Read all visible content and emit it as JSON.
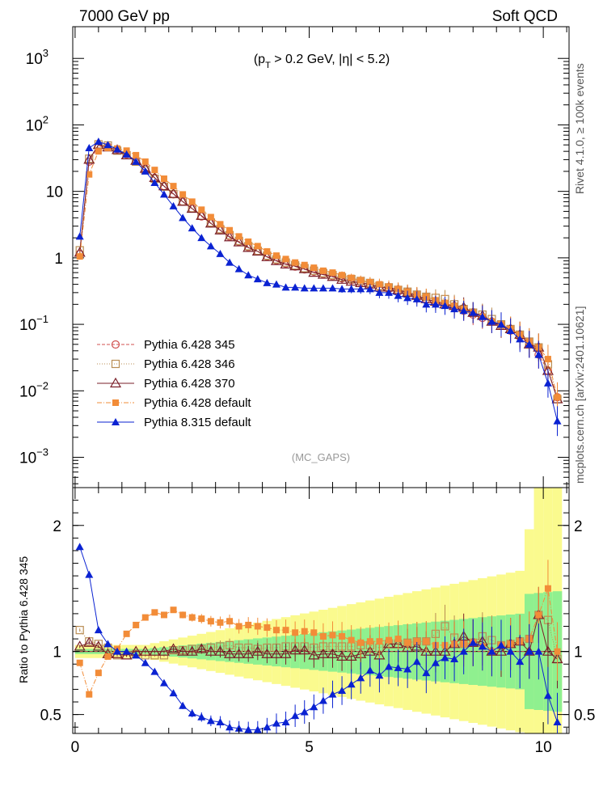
{
  "header": {
    "left_title": "7000 GeV pp",
    "right_title": "Soft QCD",
    "cut_label_prefix": "(p",
    "cut_label_sub": "T",
    "cut_label_suffix": " > 0.2 GeV, |η| < 5.2)",
    "analysis_tag": "(MC_GAPS)",
    "side_label_top": "Rivet 4.1.0, ≥ 100k events",
    "side_label_bottom": "mcplots.cern.ch [arXiv:2401.10621]",
    "ratio_ylabel": "Ratio to Pythia 6.428 345"
  },
  "chart_data": {
    "type": "line",
    "x_range": [
      -0.05,
      10.55
    ],
    "y_range_main": [
      0.00035,
      3000
    ],
    "y_scale_main": "log",
    "y_range_ratio": [
      0.35,
      2.3
    ],
    "x_ticks": [
      "0",
      "5",
      "10"
    ],
    "x_tick_values": [
      0,
      5,
      10
    ],
    "y_ticks_main": [
      {
        "v": 0.001,
        "base": "10",
        "exp": "−3"
      },
      {
        "v": 0.01,
        "base": "10",
        "exp": "−2"
      },
      {
        "v": 0.1,
        "base": "10",
        "exp": "−1"
      },
      {
        "v": 1,
        "base": "1",
        "exp": ""
      },
      {
        "v": 10,
        "base": "10",
        "exp": ""
      },
      {
        "v": 100,
        "base": "10",
        "exp": "2"
      },
      {
        "v": 1000,
        "base": "10",
        "exp": "3"
      }
    ],
    "y_ticks_ratio": [
      {
        "v": 0.5,
        "label": "0.5"
      },
      {
        "v": 1,
        "label": "1"
      },
      {
        "v": 2,
        "label": "2"
      }
    ],
    "x": [
      0.1,
      0.3,
      0.5,
      0.7,
      0.9,
      1.1,
      1.3,
      1.5,
      1.7,
      1.9,
      2.1,
      2.3,
      2.5,
      2.7,
      2.9,
      3.1,
      3.3,
      3.5,
      3.7,
      3.9,
      4.1,
      4.3,
      4.5,
      4.7,
      4.9,
      5.1,
      5.3,
      5.5,
      5.7,
      5.9,
      6.1,
      6.3,
      6.5,
      6.7,
      6.9,
      7.1,
      7.3,
      7.5,
      7.7,
      7.9,
      8.1,
      8.3,
      8.5,
      8.7,
      8.9,
      9.1,
      9.3,
      9.5,
      9.7,
      9.9,
      10.1,
      10.3
    ],
    "series": [
      {
        "name": "Pythia 6.428 345",
        "color": "#d0504f",
        "marker": "open-circle",
        "dash": "4,2",
        "values": [
          1.15,
          28,
          48,
          47,
          43,
          36,
          29,
          22,
          16,
          12,
          9,
          7,
          5.5,
          4.2,
          3.3,
          2.6,
          2.1,
          1.75,
          1.45,
          1.25,
          1.05,
          0.92,
          0.82,
          0.74,
          0.67,
          0.62,
          0.57,
          0.53,
          0.49,
          0.46,
          0.43,
          0.4,
          0.37,
          0.34,
          0.31,
          0.29,
          0.26,
          0.24,
          0.22,
          0.2,
          0.18,
          0.16,
          0.14,
          0.125,
          0.11,
          0.095,
          0.08,
          0.065,
          0.05,
          0.035,
          0.02,
          0.008
        ]
      },
      {
        "name": "Pythia 6.428 346",
        "color": "#b98d53",
        "marker": "open-square",
        "dash": "1,2",
        "values": [
          1.3,
          31,
          51,
          49,
          41,
          35,
          28,
          21,
          15.5,
          11.8,
          9.1,
          7.1,
          5.6,
          4.3,
          3.4,
          2.7,
          2.2,
          1.8,
          1.5,
          1.28,
          1.08,
          0.95,
          0.85,
          0.77,
          0.7,
          0.64,
          0.59,
          0.55,
          0.51,
          0.48,
          0.45,
          0.42,
          0.38,
          0.36,
          0.33,
          0.31,
          0.28,
          0.26,
          0.25,
          0.24,
          0.2,
          0.17,
          0.15,
          0.14,
          0.12,
          0.1,
          0.085,
          0.07,
          0.055,
          0.045,
          0.025,
          0.0075
        ]
      },
      {
        "name": "Pythia 6.428 370",
        "color": "#7a1f29",
        "marker": "open-triangle",
        "dash": "",
        "values": [
          1.2,
          30,
          50,
          46,
          42,
          35,
          29,
          22,
          16,
          12,
          9.2,
          7,
          5.5,
          4.3,
          3.3,
          2.6,
          2.05,
          1.72,
          1.42,
          1.25,
          1.03,
          0.9,
          0.8,
          0.75,
          0.68,
          0.6,
          0.56,
          0.52,
          0.47,
          0.44,
          0.42,
          0.4,
          0.36,
          0.36,
          0.33,
          0.3,
          0.27,
          0.24,
          0.22,
          0.2,
          0.19,
          0.18,
          0.15,
          0.135,
          0.11,
          0.095,
          0.085,
          0.07,
          0.05,
          0.045,
          0.02,
          0.0075
        ]
      },
      {
        "name": "Pythia 6.428 default",
        "color": "#f28c38",
        "marker": "filled-square",
        "dash": "6,2,1,2",
        "values": [
          1.05,
          18,
          40,
          45,
          44,
          41,
          35,
          28,
          21,
          15.5,
          12,
          9,
          7,
          5.3,
          4.1,
          3.2,
          2.6,
          2.1,
          1.75,
          1.5,
          1.25,
          1.08,
          0.96,
          0.85,
          0.78,
          0.71,
          0.64,
          0.6,
          0.55,
          0.5,
          0.46,
          0.43,
          0.4,
          0.37,
          0.34,
          0.31,
          0.28,
          0.26,
          0.23,
          0.21,
          0.19,
          0.17,
          0.15,
          0.13,
          0.11,
          0.1,
          0.085,
          0.07,
          0.055,
          0.045,
          0.03,
          0.008
        ]
      },
      {
        "name": "Pythia 8.315 default",
        "color": "#0a22d2",
        "marker": "filled-triangle",
        "dash": "",
        "values": [
          2.1,
          45,
          56,
          50,
          43,
          36,
          28,
          20,
          13.5,
          9,
          6,
          4,
          2.8,
          2,
          1.5,
          1.15,
          0.85,
          0.68,
          0.55,
          0.48,
          0.42,
          0.4,
          0.36,
          0.36,
          0.35,
          0.35,
          0.35,
          0.35,
          0.34,
          0.34,
          0.34,
          0.34,
          0.3,
          0.3,
          0.27,
          0.25,
          0.24,
          0.2,
          0.2,
          0.19,
          0.17,
          0.16,
          0.15,
          0.13,
          0.11,
          0.1,
          0.08,
          0.06,
          0.05,
          0.035,
          0.013,
          0.0035
        ]
      }
    ],
    "ratio_series": [
      {
        "name": "Pythia 6.428 346",
        "values": [
          1.17,
          1.08,
          1.06,
          1.03,
          0.97,
          0.97,
          0.98,
          0.97,
          0.97,
          0.97,
          1.01,
          1.01,
          1.02,
          1.02,
          1.03,
          1.04,
          1.05,
          1.03,
          1.03,
          1.02,
          1.03,
          1.03,
          1.04,
          1.04,
          1.04,
          1.03,
          1.04,
          1.04,
          1.04,
          1.04,
          1.05,
          1.05,
          1.03,
          1.06,
          1.06,
          1.07,
          1.08,
          1.08,
          1.14,
          1.2,
          1.11,
          1.06,
          1.07,
          1.12,
          1.09,
          1.05,
          1.06,
          1.08,
          1.1,
          1.29,
          1.25,
          0.94
        ]
      },
      {
        "name": "Pythia 6.428 370",
        "values": [
          1.04,
          1.07,
          1.04,
          0.98,
          0.98,
          0.97,
          1.0,
          1.0,
          1.0,
          1.0,
          1.02,
          1.0,
          1.0,
          1.02,
          1.0,
          1.0,
          0.98,
          0.98,
          0.98,
          1.0,
          0.98,
          0.98,
          0.98,
          1.01,
          1.01,
          0.97,
          0.98,
          0.98,
          0.96,
          0.96,
          0.98,
          1.0,
          0.97,
          1.06,
          1.06,
          1.03,
          1.04,
          1.0,
          1.0,
          1.0,
          1.06,
          1.12,
          1.07,
          1.08,
          1.0,
          1.0,
          1.06,
          1.08,
          1.0,
          1.29,
          1.0,
          0.94
        ]
      },
      {
        "name": "Pythia 6.428 default",
        "values": [
          0.91,
          0.66,
          0.83,
          0.96,
          1.02,
          1.14,
          1.21,
          1.27,
          1.31,
          1.29,
          1.33,
          1.29,
          1.27,
          1.26,
          1.24,
          1.23,
          1.24,
          1.2,
          1.21,
          1.2,
          1.19,
          1.17,
          1.17,
          1.15,
          1.16,
          1.15,
          1.12,
          1.13,
          1.12,
          1.09,
          1.07,
          1.08,
          1.08,
          1.09,
          1.1,
          1.07,
          1.08,
          1.08,
          1.05,
          1.05,
          1.06,
          1.06,
          1.07,
          1.04,
          1.0,
          1.05,
          1.06,
          1.08,
          1.1,
          1.29,
          1.5,
          1.0
        ]
      },
      {
        "name": "Pythia 8.315 default",
        "values": [
          1.83,
          1.61,
          1.17,
          1.06,
          1.0,
          1.0,
          0.97,
          0.91,
          0.84,
          0.75,
          0.67,
          0.57,
          0.51,
          0.48,
          0.45,
          0.44,
          0.4,
          0.39,
          0.38,
          0.38,
          0.4,
          0.43,
          0.44,
          0.49,
          0.52,
          0.56,
          0.61,
          0.66,
          0.69,
          0.74,
          0.79,
          0.85,
          0.81,
          0.88,
          0.87,
          0.86,
          0.92,
          0.83,
          0.91,
          0.95,
          0.94,
          1.0,
          1.07,
          1.04,
          1.0,
          1.05,
          1.0,
          0.92,
          1.0,
          1.0,
          0.65,
          0.44
        ]
      }
    ],
    "legend": [
      {
        "label": "Pythia 6.428 345"
      },
      {
        "label": "Pythia 6.428 346"
      },
      {
        "label": "Pythia 6.428 370"
      },
      {
        "label": "Pythia 6.428 default"
      },
      {
        "label": "Pythia 8.315 default"
      }
    ],
    "legend_position": "lower-left",
    "ratio_band_inner_color": "#8ff08f",
    "ratio_band_outer_color": "#fafa8e"
  }
}
